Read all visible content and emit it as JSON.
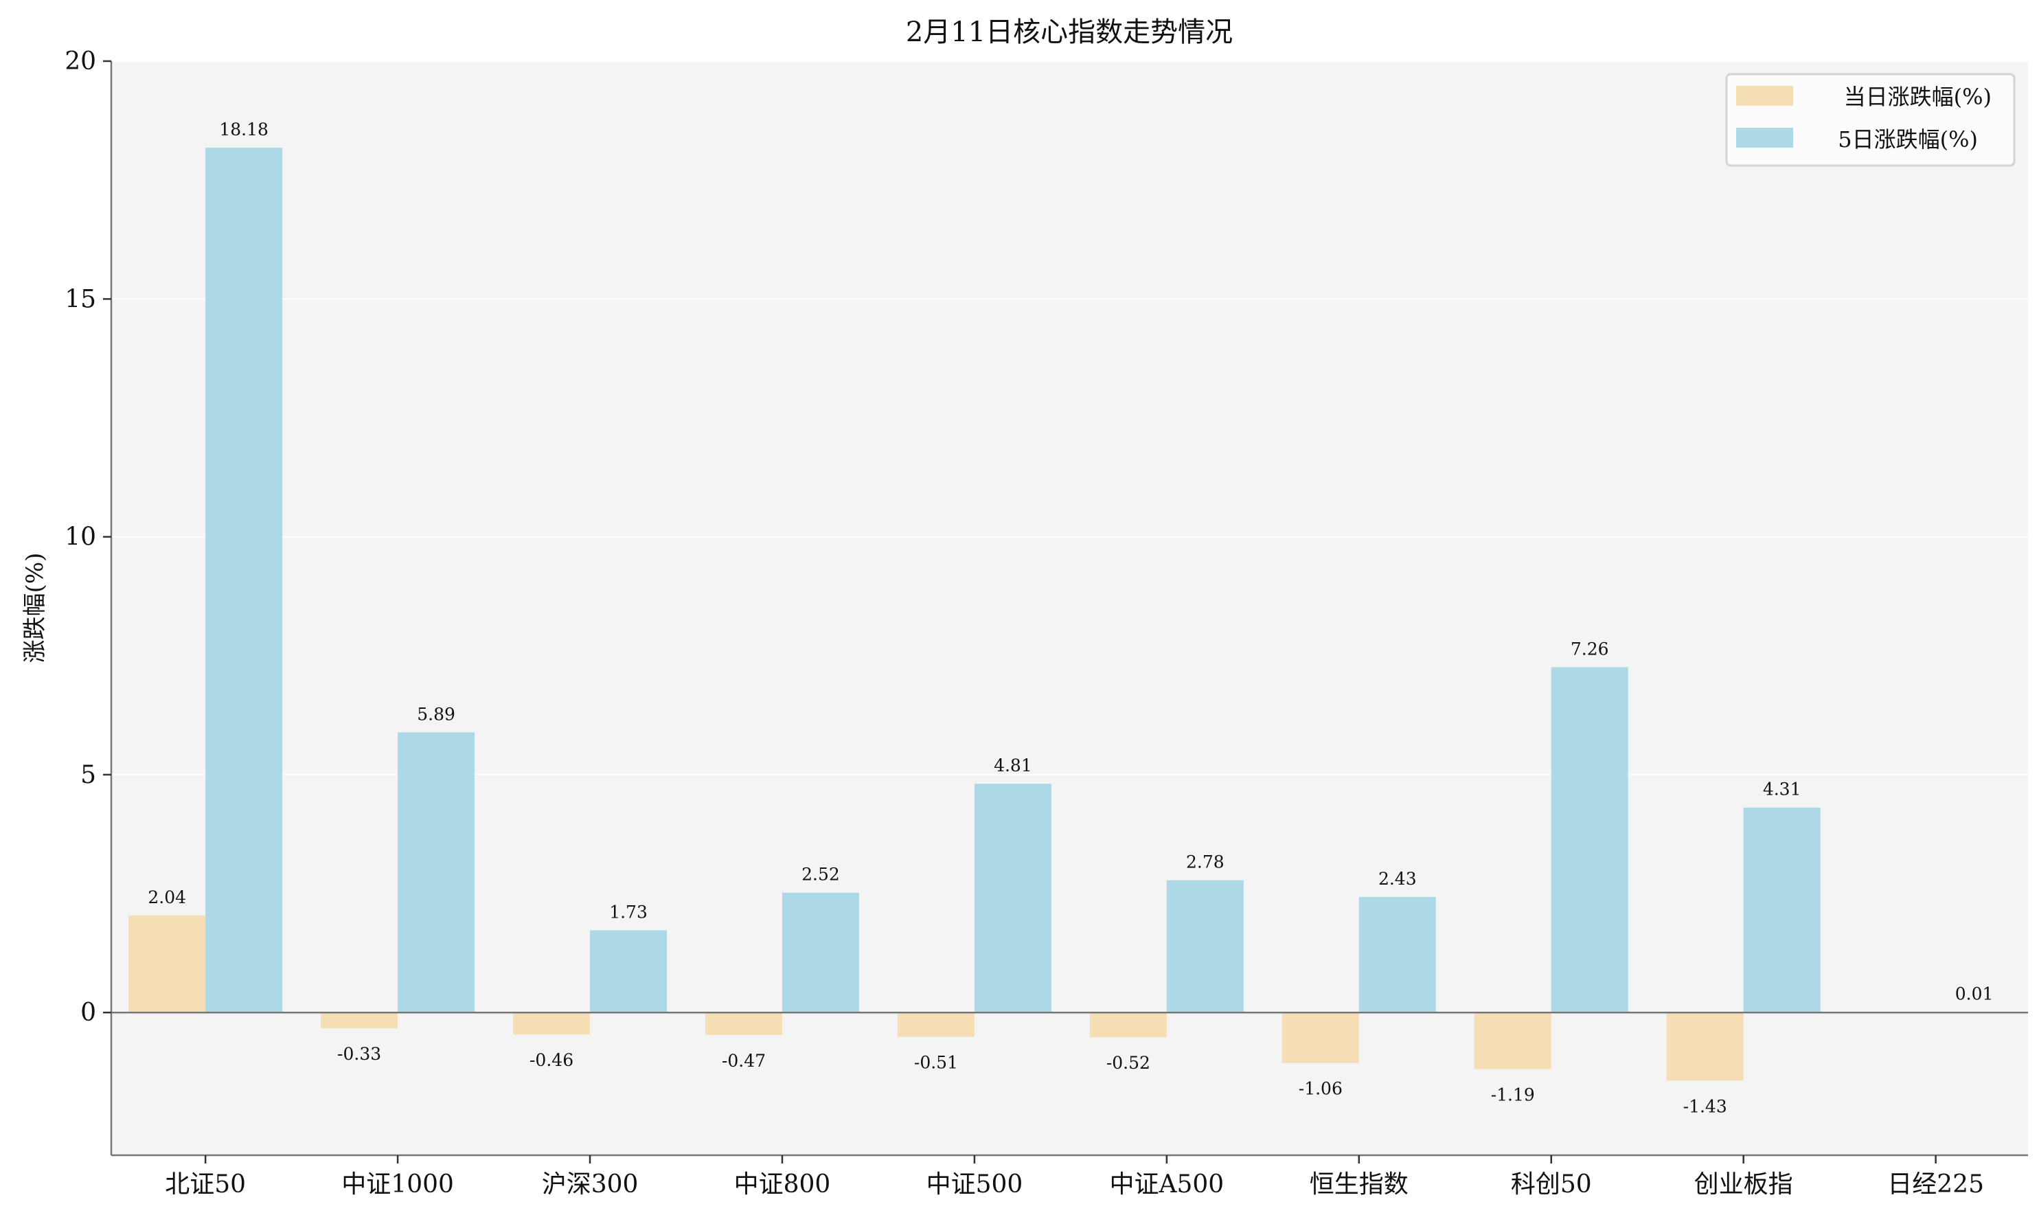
{
  "chart_data": {
    "type": "bar",
    "title": "2月11日核心指数走势情况",
    "xlabel": "",
    "ylabel": "涨跌幅(%)",
    "ylim": [
      -3,
      20
    ],
    "yticks": [
      0,
      5,
      10,
      15,
      20
    ],
    "grid": true,
    "legend_position": "top-right",
    "categories": [
      "北证50",
      "中证1000",
      "沪深300",
      "中证800",
      "中证500",
      "中证A500",
      "恒生指数",
      "科创50",
      "创业板指",
      "日经225"
    ],
    "series": [
      {
        "name": "当日涨跌幅(%)",
        "color": "#f5deb3",
        "values": [
          2.04,
          -0.33,
          -0.46,
          -0.47,
          -0.51,
          -0.52,
          -1.06,
          -1.19,
          -1.43,
          null
        ]
      },
      {
        "name": "5日涨跌幅(%)",
        "color": "#add8e6",
        "values": [
          18.18,
          5.89,
          1.73,
          2.52,
          4.81,
          2.78,
          2.43,
          7.26,
          4.31,
          0.01
        ]
      }
    ],
    "plot_background": "#f4f4f4"
  }
}
